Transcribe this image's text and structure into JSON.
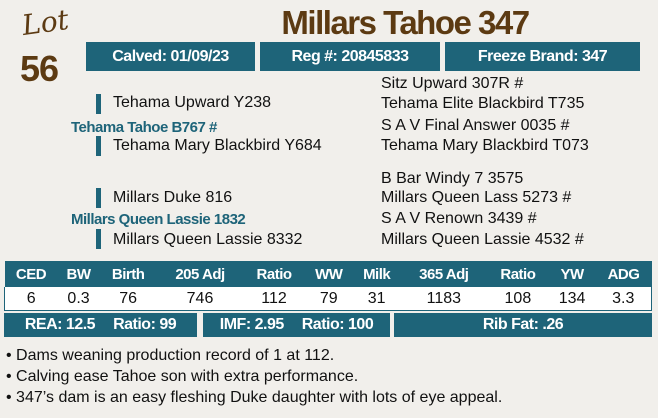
{
  "lot": {
    "label": "Lot",
    "number": "56"
  },
  "title": "Millars Tahoe 347",
  "info": {
    "calved": "Calved: 01/09/23",
    "reg": "Reg #: 20845833",
    "brand": "Freeze Brand: 347"
  },
  "pedigree": {
    "sire": "Tehama Tahoe B767 #",
    "sire_sire": "Tehama Upward Y238",
    "sire_dam": "Tehama Mary Blackbird Y684",
    "sss": "Sitz Upward 307R #",
    "ssd": "Tehama Elite Blackbird T735",
    "sds": "S A V Final Answer 0035 #",
    "sdd": "Tehama Mary Blackbird T073",
    "dam": "Millars Queen Lassie 1832",
    "dam_sire": "Millars Duke 816",
    "dam_dam": "Millars Queen Lassie 8332",
    "dss": "B Bar Windy 7 3575",
    "dsd": "Millars Queen Lass 5273 #",
    "dds": "S A V Renown 3439 #",
    "ddd": "Millars Queen Lassie 4532 #"
  },
  "epd": {
    "headers": [
      "CED",
      "BW",
      "Birth",
      "205 Adj",
      "Ratio",
      "WW",
      "Milk",
      "365 Adj",
      "Ratio",
      "YW",
      "ADG"
    ],
    "values": [
      "6",
      "0.3",
      "76",
      "746",
      "112",
      "79",
      "31",
      "1183",
      "108",
      "134",
      "3.3"
    ]
  },
  "carcass": {
    "rea": "REA: 12.5",
    "rea_ratio": "Ratio: 99",
    "imf": "IMF: 2.95",
    "imf_ratio": "Ratio: 100",
    "ribfat": "Rib Fat: .26"
  },
  "notes": [
    "• Dams weaning production record of 1 at 112.",
    "• Calving ease Tahoe son with extra performance.",
    "• 347’s dam is an easy fleshing Duke daughter with lots of eye appeal."
  ],
  "colors": {
    "teal": "#1e6479",
    "brown": "#5c3a12"
  }
}
